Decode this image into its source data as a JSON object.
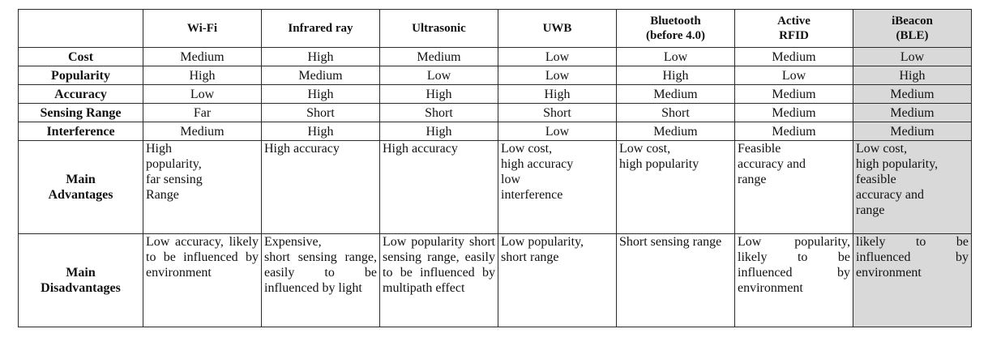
{
  "table": {
    "columns": [
      "",
      "Wi-Fi",
      "Infrared ray",
      "Ultrasonic",
      "UWB",
      "Bluetooth\n(before 4.0)",
      "Active\nRFID",
      "iBeacon\n(BLE)"
    ],
    "rows": [
      {
        "label": "Cost",
        "cells": [
          "Medium",
          "High",
          "Medium",
          "Low",
          "Low",
          "Medium",
          "Low"
        ]
      },
      {
        "label": "Popularity",
        "cells": [
          "High",
          "Medium",
          "Low",
          "Low",
          "High",
          "Low",
          "High"
        ]
      },
      {
        "label": "Accuracy",
        "cells": [
          "Low",
          "High",
          "High",
          "High",
          "Medium",
          "Medium",
          "Medium"
        ]
      },
      {
        "label": "Sensing Range",
        "cells": [
          "Far",
          "Short",
          "Short",
          "Short",
          "Short",
          "Medium",
          "Medium"
        ]
      },
      {
        "label": "Interference",
        "cells": [
          "Medium",
          "High",
          "High",
          "Low",
          "Medium",
          "Medium",
          "Medium"
        ]
      }
    ],
    "advantages": {
      "label": "Main\nAdvantages",
      "cells": [
        "High\npopularity,\nfar sensing\nRange",
        "High accuracy",
        "High accuracy",
        "Low cost,\nhigh accuracy\nlow\ninterference",
        "Low cost,\n high popularity",
        "Feasible\naccuracy and\nrange",
        "Low cost,\nhigh popularity,\nfeasible\naccuracy and\nrange"
      ]
    },
    "disadvantages": {
      "label": "Main\nDisadvantages",
      "cells": [
        "Low accuracy, likely to be influenced by environment",
        "Expensive,\nshort sensing range, easily to be influenced by light",
        "Low popularity short sensing range, easily to be influenced by multipath effect",
        "Low popularity,\nshort range",
        "Short sensing range",
        "Low popularity, likely to be influenced by environment",
        "likely to be influenced by environment"
      ]
    }
  }
}
